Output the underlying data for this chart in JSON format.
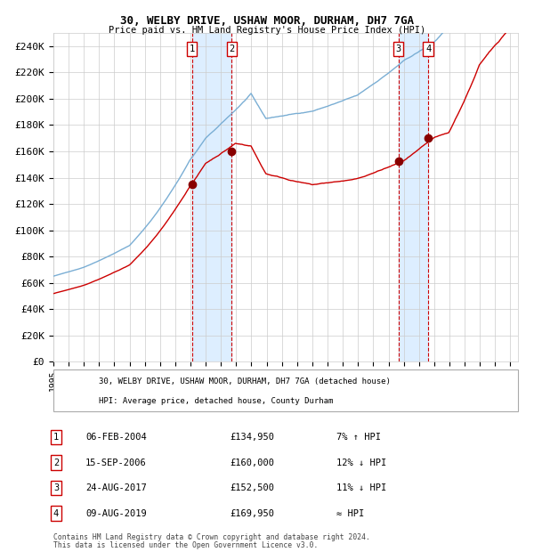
{
  "title1": "30, WELBY DRIVE, USHAW MOOR, DURHAM, DH7 7GA",
  "title2": "Price paid vs. HM Land Registry's House Price Index (HPI)",
  "xlim_start": 1995.0,
  "xlim_end": 2025.5,
  "ylim_min": 0,
  "ylim_max": 250000,
  "yticks": [
    0,
    20000,
    40000,
    60000,
    80000,
    100000,
    120000,
    140000,
    160000,
    180000,
    200000,
    220000,
    240000
  ],
  "ytick_labels": [
    "£0",
    "£20K",
    "£40K",
    "£60K",
    "£80K",
    "£100K",
    "£120K",
    "£140K",
    "£160K",
    "£180K",
    "£200K",
    "£220K",
    "£240K"
  ],
  "transactions": [
    {
      "num": 1,
      "date_str": "06-FEB-2004",
      "year": 2004.09,
      "price": 134950,
      "rel": "7% ↑ HPI"
    },
    {
      "num": 2,
      "date_str": "15-SEP-2006",
      "year": 2006.71,
      "price": 160000,
      "rel": "12% ↓ HPI"
    },
    {
      "num": 3,
      "date_str": "24-AUG-2017",
      "year": 2017.65,
      "price": 152500,
      "rel": "11% ↓ HPI"
    },
    {
      "num": 4,
      "date_str": "09-AUG-2019",
      "year": 2019.61,
      "price": 169950,
      "rel": "≈ HPI"
    }
  ],
  "legend_line1": "30, WELBY DRIVE, USHAW MOOR, DURHAM, DH7 7GA (detached house)",
  "legend_line2": "HPI: Average price, detached house, County Durham",
  "footer1": "Contains HM Land Registry data © Crown copyright and database right 2024.",
  "footer2": "This data is licensed under the Open Government Licence v3.0.",
  "red_color": "#cc0000",
  "blue_color": "#7aaed4",
  "shade_color": "#ddeeff",
  "bg_color": "#ffffff",
  "grid_color": "#cccccc"
}
